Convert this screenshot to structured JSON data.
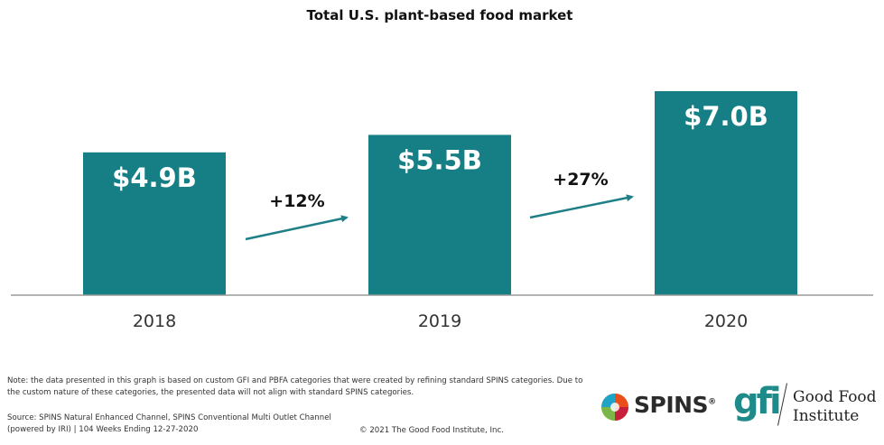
{
  "chart_data": {
    "type": "bar",
    "title": "Total U.S. plant-based food market",
    "categories": [
      "2018",
      "2019",
      "2020"
    ],
    "values": [
      4.9,
      5.5,
      7.0
    ],
    "value_labels": [
      "$4.9B",
      "$5.5B",
      "$7.0B"
    ],
    "unit": "USD billions",
    "growth_annotations": [
      {
        "from": "2018",
        "to": "2019",
        "label": "+12%"
      },
      {
        "from": "2019",
        "to": "2020",
        "label": "+27%"
      }
    ],
    "bar_color": "#157f85",
    "arrow_color": "#1f7f87",
    "grid": false,
    "legend": "none"
  },
  "footer": {
    "note": "Note: the data presented in this graph is based on custom GFI and PBFA categories that were created by refining standard SPINS categories. Due to the custom nature of these categories, the presented data will not align with standard SPINS categories.",
    "source": "Source: SPINS Natural Enhanced Channel, SPINS Conventional Multi Outlet Channel (powered by IRI) | 104 Weeks Ending 12-27-2020",
    "copyright": "© 2021 The Good Food Institute, Inc."
  },
  "logos": {
    "spins": {
      "word": "SPINS",
      "mark": "®"
    },
    "gfi": {
      "mark": "gfi",
      "name_line1": "Good Food",
      "name_line2": "Institute"
    }
  }
}
